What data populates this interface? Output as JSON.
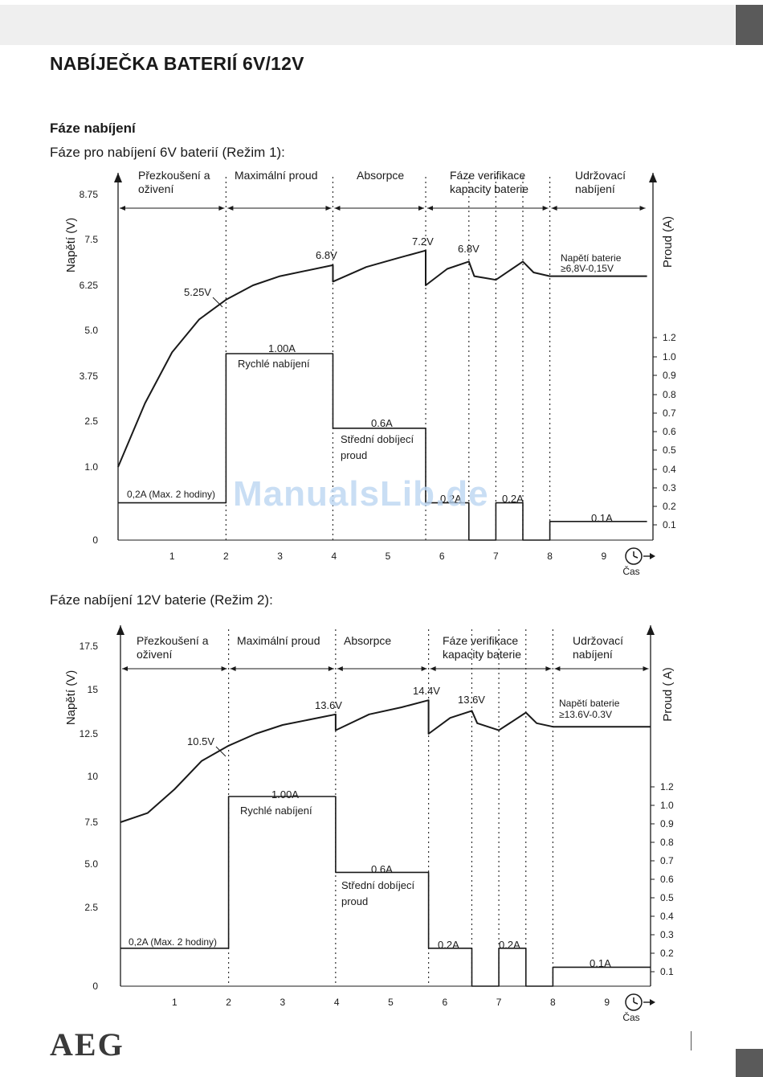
{
  "page": {
    "title": "NABÍJEČKA BATERIÍ 6V/12V",
    "section": "Fáze nabíjení",
    "brand": "AEG",
    "watermark": "ManualsLib.de"
  },
  "phases": [
    "Přezkoušení a oživení",
    "Maximální proud",
    "Absorpce",
    "Fáze verifikace kapacity baterie",
    "Udržovací nabíjení"
  ],
  "chart_data": [
    {
      "type": "line",
      "title": "Fáze pro nabíjení 6V baterií (Režim 1):",
      "xlabel": "Čas",
      "ylabel_left": "Napětí (V)",
      "ylabel_right": "Proud (A)",
      "x_ticks": [
        "1",
        "2",
        "3",
        "4",
        "5",
        "6",
        "7",
        "8",
        "9"
      ],
      "xlim": [
        0,
        9.8
      ],
      "y_left_ticks": [
        "0",
        "1.0",
        "2.5",
        "3.75",
        "5.0",
        "6.25",
        "7.5",
        "8.75"
      ],
      "y_right_ticks": [
        "0.1",
        "0.2",
        "0.3",
        "0.4",
        "0.5",
        "0.6",
        "0.7",
        "0.8",
        "0.9",
        "1.0",
        "1.2"
      ],
      "phase_boundaries": [
        2,
        3.98,
        5.7,
        6.5,
        7,
        7.5,
        8
      ],
      "phase_labels": [
        "Přezkoušení a\noživení",
        "Maximální proud",
        "Absorpce",
        "Fáze verifikace\nkapacity baterie",
        "Udržovací\nnabíjení"
      ],
      "series": [
        {
          "name": "Napětí baterie",
          "axis": "left",
          "x": [
            0,
            0.5,
            1,
            1.5,
            2,
            2.5,
            3,
            3.98,
            3.98,
            4.6,
            5.2,
            5.7,
            5.7,
            6.1,
            6.5,
            6.6,
            6.8,
            7,
            7.5,
            7.7,
            8,
            9.8
          ],
          "y": [
            1.0,
            3.0,
            4.4,
            5.3,
            5.85,
            6.25,
            6.5,
            6.8,
            6.35,
            6.75,
            7.0,
            7.2,
            6.25,
            6.7,
            6.9,
            6.5,
            6.45,
            6.4,
            6.9,
            6.6,
            6.5,
            6.5
          ]
        },
        {
          "name": "Proud",
          "axis": "right",
          "x": [
            0,
            2,
            2,
            3.98,
            3.98,
            5.7,
            5.7,
            6.5,
            6.5,
            7,
            7,
            7.5,
            7.5,
            8,
            8,
            9.8
          ],
          "y": [
            0.2,
            0.2,
            1.0,
            1.0,
            0.6,
            0.6,
            0.2,
            0.2,
            0,
            0,
            0.2,
            0.2,
            0,
            0,
            0.1,
            0.1
          ]
        }
      ],
      "annotations": [
        "5.25V",
        "6.8V",
        "7.2V",
        "6.8V",
        "Napětí baterie",
        "≥6,8V-0,15V",
        "1.00A",
        "Rychlé nabíjení",
        "0.6A",
        "Střední dobíjecí",
        "proud",
        "0,2A (Max. 2 hodiny)",
        "0.2A",
        "0.2A",
        "0.1A"
      ]
    },
    {
      "type": "line",
      "title": "Fáze nabíjení 12V baterie (Režim 2):",
      "xlabel": "Čas",
      "ylabel_left": "Napětí (V)",
      "ylabel_right": "Proud ( A)",
      "x_ticks": [
        "1",
        "2",
        "3",
        "4",
        "5",
        "6",
        "7",
        "8",
        "9"
      ],
      "xlim": [
        0,
        9.8
      ],
      "y_left_ticks": [
        "0",
        "2.5",
        "5.0",
        "7.5",
        "10",
        "12.5",
        "15",
        "17.5"
      ],
      "y_right_ticks": [
        "0.1",
        "0.2",
        "0.3",
        "0.4",
        "0.5",
        "0.6",
        "0.7",
        "0.8",
        "0.9",
        "1.0",
        "1.2"
      ],
      "phase_boundaries": [
        2,
        3.98,
        5.7,
        6.5,
        7,
        7.5,
        8
      ],
      "phase_labels": [
        "Přezkoušení a\noživení",
        "Maximální proud",
        "Absorpce",
        "Fáze verifikace\nkapacity baterie",
        "Udržovací\nnabíjení"
      ],
      "series": [
        {
          "name": "Napětí baterie",
          "axis": "left",
          "x": [
            0,
            0.5,
            1,
            1.5,
            2,
            2.5,
            3,
            3.98,
            3.98,
            4.6,
            5.2,
            5.7,
            5.7,
            6.1,
            6.5,
            6.6,
            6.8,
            7,
            7.5,
            7.7,
            8,
            9.8
          ],
          "y": [
            7.5,
            8.0,
            9.3,
            10.9,
            11.8,
            12.5,
            13.0,
            13.6,
            12.7,
            13.6,
            14.0,
            14.4,
            12.5,
            13.4,
            13.8,
            13.1,
            12.9,
            12.7,
            13.7,
            13.1,
            12.9,
            12.9
          ]
        },
        {
          "name": "Proud",
          "axis": "right",
          "x": [
            0,
            2,
            2,
            3.98,
            3.98,
            5.7,
            5.7,
            6.5,
            6.5,
            7,
            7,
            7.5,
            7.5,
            8,
            8,
            9.8
          ],
          "y": [
            0.2,
            0.2,
            1.0,
            1.0,
            0.6,
            0.6,
            0.2,
            0.2,
            0,
            0,
            0.2,
            0.2,
            0,
            0,
            0.1,
            0.1
          ]
        }
      ],
      "annotations": [
        "10.5V",
        "13.6V",
        "14.4V",
        "13.6V",
        "Napětí baterie",
        "≥13.6V-0.3V",
        "1.00A",
        "Rychlé nabíjení",
        "0.6A",
        "Střední dobíjecí",
        "proud",
        "0,2A (Max. 2 hodiny)",
        "0.2A",
        "0.2A",
        "0.1A"
      ]
    }
  ]
}
